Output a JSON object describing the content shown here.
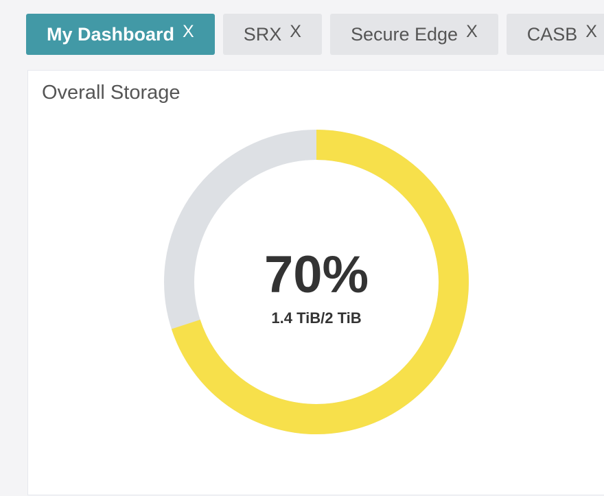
{
  "tabs": [
    {
      "label": "My Dashboard",
      "active": true,
      "close": "X"
    },
    {
      "label": "SRX",
      "active": false,
      "close": "X"
    },
    {
      "label": "Secure Edge",
      "active": false,
      "close": "X"
    },
    {
      "label": "CASB",
      "active": false,
      "close": "X"
    }
  ],
  "widget": {
    "title": "Overall Storage",
    "percent_label": "70%",
    "usage_label": "1.4 TiB/2 TiB",
    "used_fraction": 0.7,
    "colors": {
      "used": "#f7e04b",
      "free": "#dde0e4",
      "active_tab": "#4299a6"
    }
  }
}
